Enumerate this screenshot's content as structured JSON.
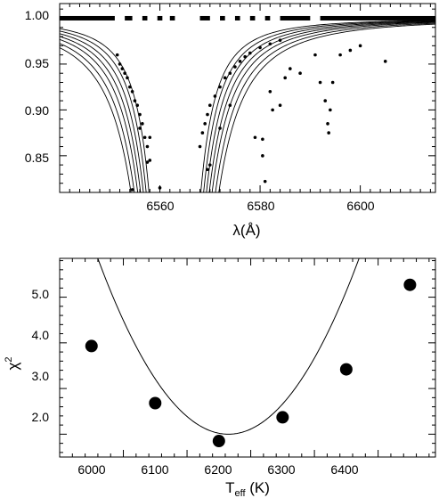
{
  "chart_data": [
    {
      "type": "scatter",
      "xlabel": "λ(Å)",
      "ylabel": "",
      "xlim": [
        6540,
        6615
      ],
      "ylim": [
        0.81,
        1.016
      ],
      "xticks": [
        "6560",
        "6580",
        "6600"
      ],
      "yticks": [
        "0.85",
        "0.90",
        "0.95",
        "1.00"
      ],
      "mask_segments": [
        [
          6540,
          6551
        ],
        [
          6553,
          6554.5
        ],
        [
          6556.5,
          6557.5
        ],
        [
          6559.5,
          6560.5
        ],
        [
          6562,
          6563
        ],
        [
          6568,
          6570
        ],
        [
          6572,
          6573
        ],
        [
          6575,
          6576
        ],
        [
          6578,
          6579
        ],
        [
          6581,
          6582
        ],
        [
          6584,
          6590
        ],
        [
          6592,
          6615
        ]
      ],
      "model_profiles": {
        "core_x": 6563,
        "continuum": 1.0,
        "half_widths_A": [
          2.3,
          2.55,
          2.8,
          3.05,
          3.3,
          3.6,
          3.9
        ]
      },
      "observed_points": {
        "core_wings": [
          {
            "x": 6551.5,
            "y": 0.96
          },
          {
            "x": 6552,
            "y": 0.95
          },
          {
            "x": 6552.5,
            "y": 0.945
          },
          {
            "x": 6553,
            "y": 0.94
          },
          {
            "x": 6553.5,
            "y": 0.935
          },
          {
            "x": 6554,
            "y": 0.925
          },
          {
            "x": 6554.5,
            "y": 0.92
          },
          {
            "x": 6555,
            "y": 0.91
          },
          {
            "x": 6555.5,
            "y": 0.905
          },
          {
            "x": 6556,
            "y": 0.895
          },
          {
            "x": 6556.5,
            "y": 0.885
          },
          {
            "x": 6557,
            "y": 0.87
          },
          {
            "x": 6557.5,
            "y": 0.86
          },
          {
            "x": 6558,
            "y": 0.845
          },
          {
            "x": 6568,
            "y": 0.86
          },
          {
            "x": 6568.5,
            "y": 0.875
          },
          {
            "x": 6569,
            "y": 0.885
          },
          {
            "x": 6569.5,
            "y": 0.895
          },
          {
            "x": 6570,
            "y": 0.905
          },
          {
            "x": 6571,
            "y": 0.915
          },
          {
            "x": 6572,
            "y": 0.925
          },
          {
            "x": 6573,
            "y": 0.935
          },
          {
            "x": 6574,
            "y": 0.94
          },
          {
            "x": 6575,
            "y": 0.947
          },
          {
            "x": 6576,
            "y": 0.953
          },
          {
            "x": 6577,
            "y": 0.958
          },
          {
            "x": 6578,
            "y": 0.962
          },
          {
            "x": 6580,
            "y": 0.968
          },
          {
            "x": 6582,
            "y": 0.972
          },
          {
            "x": 6584,
            "y": 0.976
          }
        ],
        "outliers": [
          {
            "x": 6554.5,
            "y": 0.813
          },
          {
            "x": 6556,
            "y": 0.88
          },
          {
            "x": 6557.5,
            "y": 0.843
          },
          {
            "x": 6558,
            "y": 0.87
          },
          {
            "x": 6560,
            "y": 0.815
          },
          {
            "x": 6569.5,
            "y": 0.835
          },
          {
            "x": 6570,
            "y": 0.84
          },
          {
            "x": 6572,
            "y": 0.88
          },
          {
            "x": 6574,
            "y": 0.905
          },
          {
            "x": 6579,
            "y": 0.87
          },
          {
            "x": 6580.5,
            "y": 0.868
          },
          {
            "x": 6580.5,
            "y": 0.85
          },
          {
            "x": 6581,
            "y": 0.822
          },
          {
            "x": 6582,
            "y": 0.92
          },
          {
            "x": 6582.5,
            "y": 0.9
          },
          {
            "x": 6584,
            "y": 0.905
          },
          {
            "x": 6585,
            "y": 0.935
          },
          {
            "x": 6586,
            "y": 0.945
          },
          {
            "x": 6588,
            "y": 0.94
          },
          {
            "x": 6591,
            "y": 0.96
          },
          {
            "x": 6592,
            "y": 0.93
          },
          {
            "x": 6593,
            "y": 0.91
          },
          {
            "x": 6593.5,
            "y": 0.885
          },
          {
            "x": 6593.7,
            "y": 0.875
          },
          {
            "x": 6594,
            "y": 0.9
          },
          {
            "x": 6594.5,
            "y": 0.93
          },
          {
            "x": 6596,
            "y": 0.96
          },
          {
            "x": 6598,
            "y": 0.965
          },
          {
            "x": 6600,
            "y": 0.97
          },
          {
            "x": 6605,
            "y": 0.953
          }
        ]
      }
    },
    {
      "type": "scatter",
      "xlabel": "T",
      "xlabel_sub": "eff",
      "xlabel_suffix": " (K)",
      "ylabel": "χ",
      "ylabel_sup": "2",
      "xlim": [
        5900,
        6490
      ],
      "ylim": [
        1.5,
        5.85
      ],
      "xticks": [
        "6000",
        "6100",
        "6200",
        "6300",
        "6400"
      ],
      "yticks": [
        "2.0",
        "3.0",
        "4.0",
        "5.0"
      ],
      "points": [
        {
          "x": 5950,
          "y": 3.93
        },
        {
          "x": 6050,
          "y": 2.68
        },
        {
          "x": 6150,
          "y": 1.85
        },
        {
          "x": 6250,
          "y": 2.37
        },
        {
          "x": 6350,
          "y": 3.42
        },
        {
          "x": 6450,
          "y": 5.27
        }
      ],
      "fit": {
        "type": "parabola",
        "x_min": 6165,
        "y_min": 2.0,
        "curvature": 9.15e-05
      }
    }
  ]
}
